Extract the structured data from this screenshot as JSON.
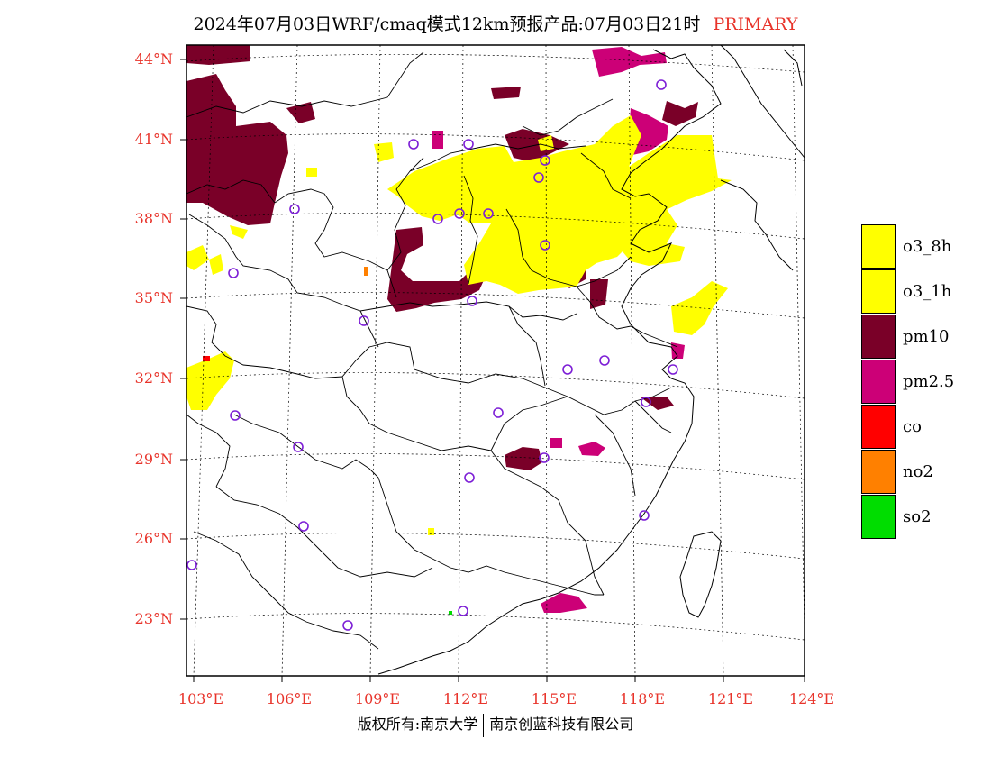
{
  "title": {
    "main": "2024年07月03日WRF/cmaq模式12km预报产品:07月03日21时",
    "tag": "PRIMARY",
    "tag_color": "#e8342b"
  },
  "lat_labels": [
    "44°N",
    "41°N",
    "38°N",
    "35°N",
    "32°N",
    "29°N",
    "26°N",
    "23°N"
  ],
  "lon_labels": [
    "103°E",
    "106°E",
    "109°E",
    "112°E",
    "115°E",
    "118°E",
    "121°E",
    "124°E"
  ],
  "legend": [
    {
      "label": "o3_8h",
      "color": "#ffff00"
    },
    {
      "label": "o3_1h",
      "color": "#ffff00"
    },
    {
      "label": "pm10",
      "color": "#7a0028"
    },
    {
      "label": "pm2.5",
      "color": "#cc0077"
    },
    {
      "label": "co",
      "color": "#ff0000"
    },
    {
      "label": "no2",
      "color": "#ff8000"
    },
    {
      "label": "so2",
      "color": "#00dd00"
    }
  ],
  "copyright": {
    "left": "版权所有:南京大学",
    "right": "南京创蓝科技有限公司"
  },
  "station_marker_color": "#7d1fd6"
}
